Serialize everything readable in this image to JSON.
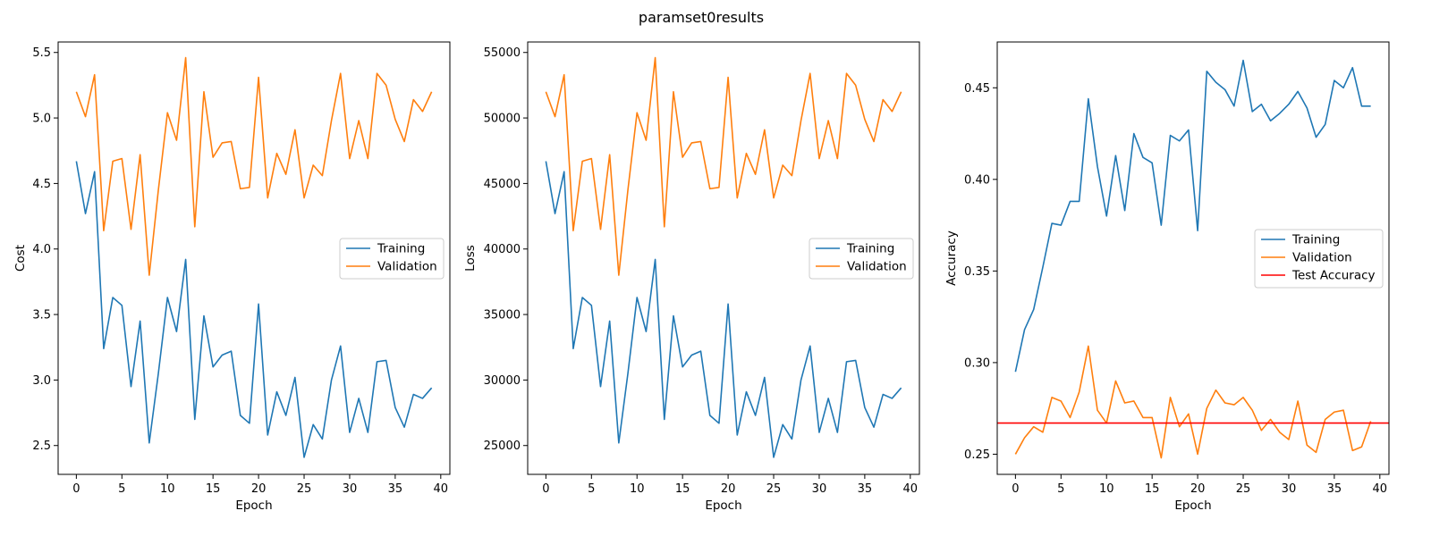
{
  "figure": {
    "suptitle": "paramset0results"
  },
  "colors": {
    "training": "#1f77b4",
    "validation": "#ff7f0e",
    "test": "#ff0000"
  },
  "chart_data": [
    {
      "type": "line",
      "xlabel": "Epoch",
      "ylabel": "Cost",
      "xlim": [
        -2,
        41
      ],
      "ylim": [
        2.28,
        5.58
      ],
      "xticks": [
        0,
        5,
        10,
        15,
        20,
        25,
        30,
        35,
        40
      ],
      "yticks": [
        2.5,
        3.0,
        3.5,
        4.0,
        4.5,
        5.0,
        5.5
      ],
      "ytick_labels": [
        "2.5",
        "3.0",
        "3.5",
        "4.0",
        "4.5",
        "5.0",
        "5.5"
      ],
      "legend": "center-right",
      "x": [
        0,
        1,
        2,
        3,
        4,
        5,
        6,
        7,
        8,
        9,
        10,
        11,
        12,
        13,
        14,
        15,
        16,
        17,
        18,
        19,
        20,
        21,
        22,
        23,
        24,
        25,
        26,
        27,
        28,
        29,
        30,
        31,
        32,
        33,
        34,
        35,
        36,
        37,
        38,
        39
      ],
      "series": [
        {
          "name": "Training",
          "color_key": "training",
          "values": [
            4.67,
            4.27,
            4.59,
            3.24,
            3.63,
            3.57,
            2.95,
            3.45,
            2.52,
            3.05,
            3.63,
            3.37,
            3.92,
            2.7,
            3.49,
            3.1,
            3.19,
            3.22,
            2.73,
            2.67,
            3.58,
            2.58,
            2.91,
            2.73,
            3.02,
            2.41,
            2.66,
            2.55,
            3.0,
            3.26,
            2.6,
            2.86,
            2.6,
            3.14,
            3.15,
            2.79,
            2.64,
            2.89,
            2.86,
            2.94
          ]
        },
        {
          "name": "Validation",
          "color_key": "validation",
          "values": [
            5.2,
            5.01,
            5.33,
            4.14,
            4.67,
            4.69,
            4.15,
            4.72,
            3.8,
            4.45,
            5.04,
            4.83,
            5.46,
            4.17,
            5.2,
            4.7,
            4.81,
            4.82,
            4.46,
            4.47,
            5.31,
            4.39,
            4.73,
            4.57,
            4.91,
            4.39,
            4.64,
            4.56,
            4.98,
            5.34,
            4.69,
            4.98,
            4.69,
            5.34,
            5.25,
            4.99,
            4.82,
            5.14,
            5.05,
            5.2
          ]
        }
      ]
    },
    {
      "type": "line",
      "xlabel": "Epoch",
      "ylabel": "Loss",
      "xlim": [
        -2,
        41
      ],
      "ylim": [
        22800,
        55800
      ],
      "xticks": [
        0,
        5,
        10,
        15,
        20,
        25,
        30,
        35,
        40
      ],
      "yticks": [
        25000,
        30000,
        35000,
        40000,
        45000,
        50000,
        55000
      ],
      "ytick_labels": [
        "25000",
        "30000",
        "35000",
        "40000",
        "45000",
        "50000",
        "55000"
      ],
      "legend": "center-right",
      "x": [
        0,
        1,
        2,
        3,
        4,
        5,
        6,
        7,
        8,
        9,
        10,
        11,
        12,
        13,
        14,
        15,
        16,
        17,
        18,
        19,
        20,
        21,
        22,
        23,
        24,
        25,
        26,
        27,
        28,
        29,
        30,
        31,
        32,
        33,
        34,
        35,
        36,
        37,
        38,
        39
      ],
      "series": [
        {
          "name": "Training",
          "color_key": "training",
          "values": [
            46700,
            42700,
            45900,
            32400,
            36300,
            35700,
            29500,
            34500,
            25200,
            30500,
            36300,
            33700,
            39200,
            27000,
            34900,
            31000,
            31900,
            32200,
            27300,
            26700,
            35800,
            25800,
            29100,
            27300,
            30200,
            24100,
            26600,
            25500,
            30000,
            32600,
            26000,
            28600,
            26000,
            31400,
            31500,
            27900,
            26400,
            28900,
            28600,
            29400
          ]
        },
        {
          "name": "Validation",
          "color_key": "validation",
          "values": [
            52000,
            50100,
            53300,
            41400,
            46700,
            46900,
            41500,
            47200,
            38000,
            44500,
            50400,
            48300,
            54600,
            41700,
            52000,
            47000,
            48100,
            48200,
            44600,
            44700,
            53100,
            43900,
            47300,
            45700,
            49100,
            43900,
            46400,
            45600,
            49800,
            53400,
            46900,
            49800,
            46900,
            53400,
            52500,
            49900,
            48200,
            51400,
            50500,
            52000
          ]
        }
      ]
    },
    {
      "type": "line",
      "xlabel": "Epoch",
      "ylabel": "Accuracy",
      "xlim": [
        -2,
        41
      ],
      "ylim": [
        0.239,
        0.475
      ],
      "xticks": [
        0,
        5,
        10,
        15,
        20,
        25,
        30,
        35,
        40
      ],
      "yticks": [
        0.25,
        0.3,
        0.35,
        0.4,
        0.45
      ],
      "ytick_labels": [
        "0.25",
        "0.30",
        "0.35",
        "0.40",
        "0.45"
      ],
      "legend": "center-right",
      "x": [
        0,
        1,
        2,
        3,
        4,
        5,
        6,
        7,
        8,
        9,
        10,
        11,
        12,
        13,
        14,
        15,
        16,
        17,
        18,
        19,
        20,
        21,
        22,
        23,
        24,
        25,
        26,
        27,
        28,
        29,
        30,
        31,
        32,
        33,
        34,
        35,
        36,
        37,
        38,
        39
      ],
      "series": [
        {
          "name": "Training",
          "color_key": "training",
          "values": [
            0.295,
            0.318,
            0.329,
            0.352,
            0.376,
            0.375,
            0.388,
            0.388,
            0.444,
            0.407,
            0.38,
            0.413,
            0.383,
            0.425,
            0.412,
            0.409,
            0.375,
            0.424,
            0.421,
            0.427,
            0.372,
            0.459,
            0.453,
            0.449,
            0.44,
            0.465,
            0.437,
            0.441,
            0.432,
            0.436,
            0.441,
            0.448,
            0.439,
            0.423,
            0.43,
            0.454,
            0.45,
            0.461,
            0.44,
            0.44
          ]
        },
        {
          "name": "Validation",
          "color_key": "validation",
          "values": [
            0.25,
            0.259,
            0.265,
            0.262,
            0.281,
            0.279,
            0.27,
            0.284,
            0.309,
            0.274,
            0.267,
            0.29,
            0.278,
            0.279,
            0.27,
            0.27,
            0.248,
            0.281,
            0.265,
            0.272,
            0.25,
            0.275,
            0.285,
            0.278,
            0.277,
            0.281,
            0.274,
            0.263,
            0.269,
            0.262,
            0.258,
            0.279,
            0.255,
            0.251,
            0.269,
            0.273,
            0.274,
            0.252,
            0.254,
            0.268
          ]
        }
      ],
      "hlines": [
        {
          "name": "Test Accuracy",
          "color_key": "test",
          "y": 0.267
        }
      ]
    }
  ]
}
